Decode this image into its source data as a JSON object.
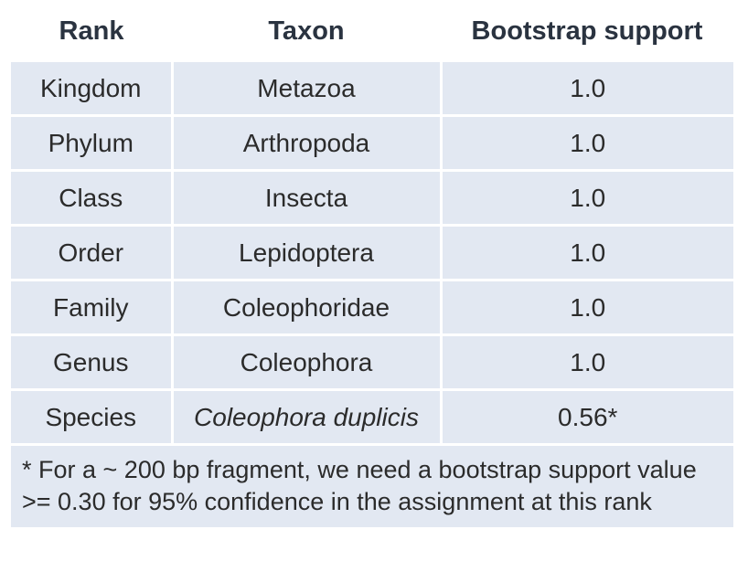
{
  "table": {
    "headers": {
      "rank": "Rank",
      "taxon": "Taxon",
      "bootstrap": "Bootstrap support"
    },
    "rows": [
      {
        "rank": "Kingdom",
        "taxon": "Metazoa",
        "bootstrap": "1.0",
        "italic": false
      },
      {
        "rank": "Phylum",
        "taxon": "Arthropoda",
        "bootstrap": "1.0",
        "italic": false
      },
      {
        "rank": "Class",
        "taxon": "Insecta",
        "bootstrap": "1.0",
        "italic": false
      },
      {
        "rank": "Order",
        "taxon": "Lepidoptera",
        "bootstrap": "1.0",
        "italic": false
      },
      {
        "rank": "Family",
        "taxon": "Coleophoridae",
        "bootstrap": "1.0",
        "italic": false
      },
      {
        "rank": "Genus",
        "taxon": "Coleophora",
        "bootstrap": "1.0",
        "italic": false
      },
      {
        "rank": "Species",
        "taxon": "Coleophora duplicis",
        "bootstrap": "0.56*",
        "italic": true
      }
    ],
    "footnote": "* For a ~ 200 bp fragment, we need a bootstrap support value >= 0.30 for 95% confidence in the assignment at this rank"
  },
  "colors": {
    "row_background": "#e2e8f2",
    "header_text": "#2a3340",
    "grid_lines": "#ffffff"
  }
}
